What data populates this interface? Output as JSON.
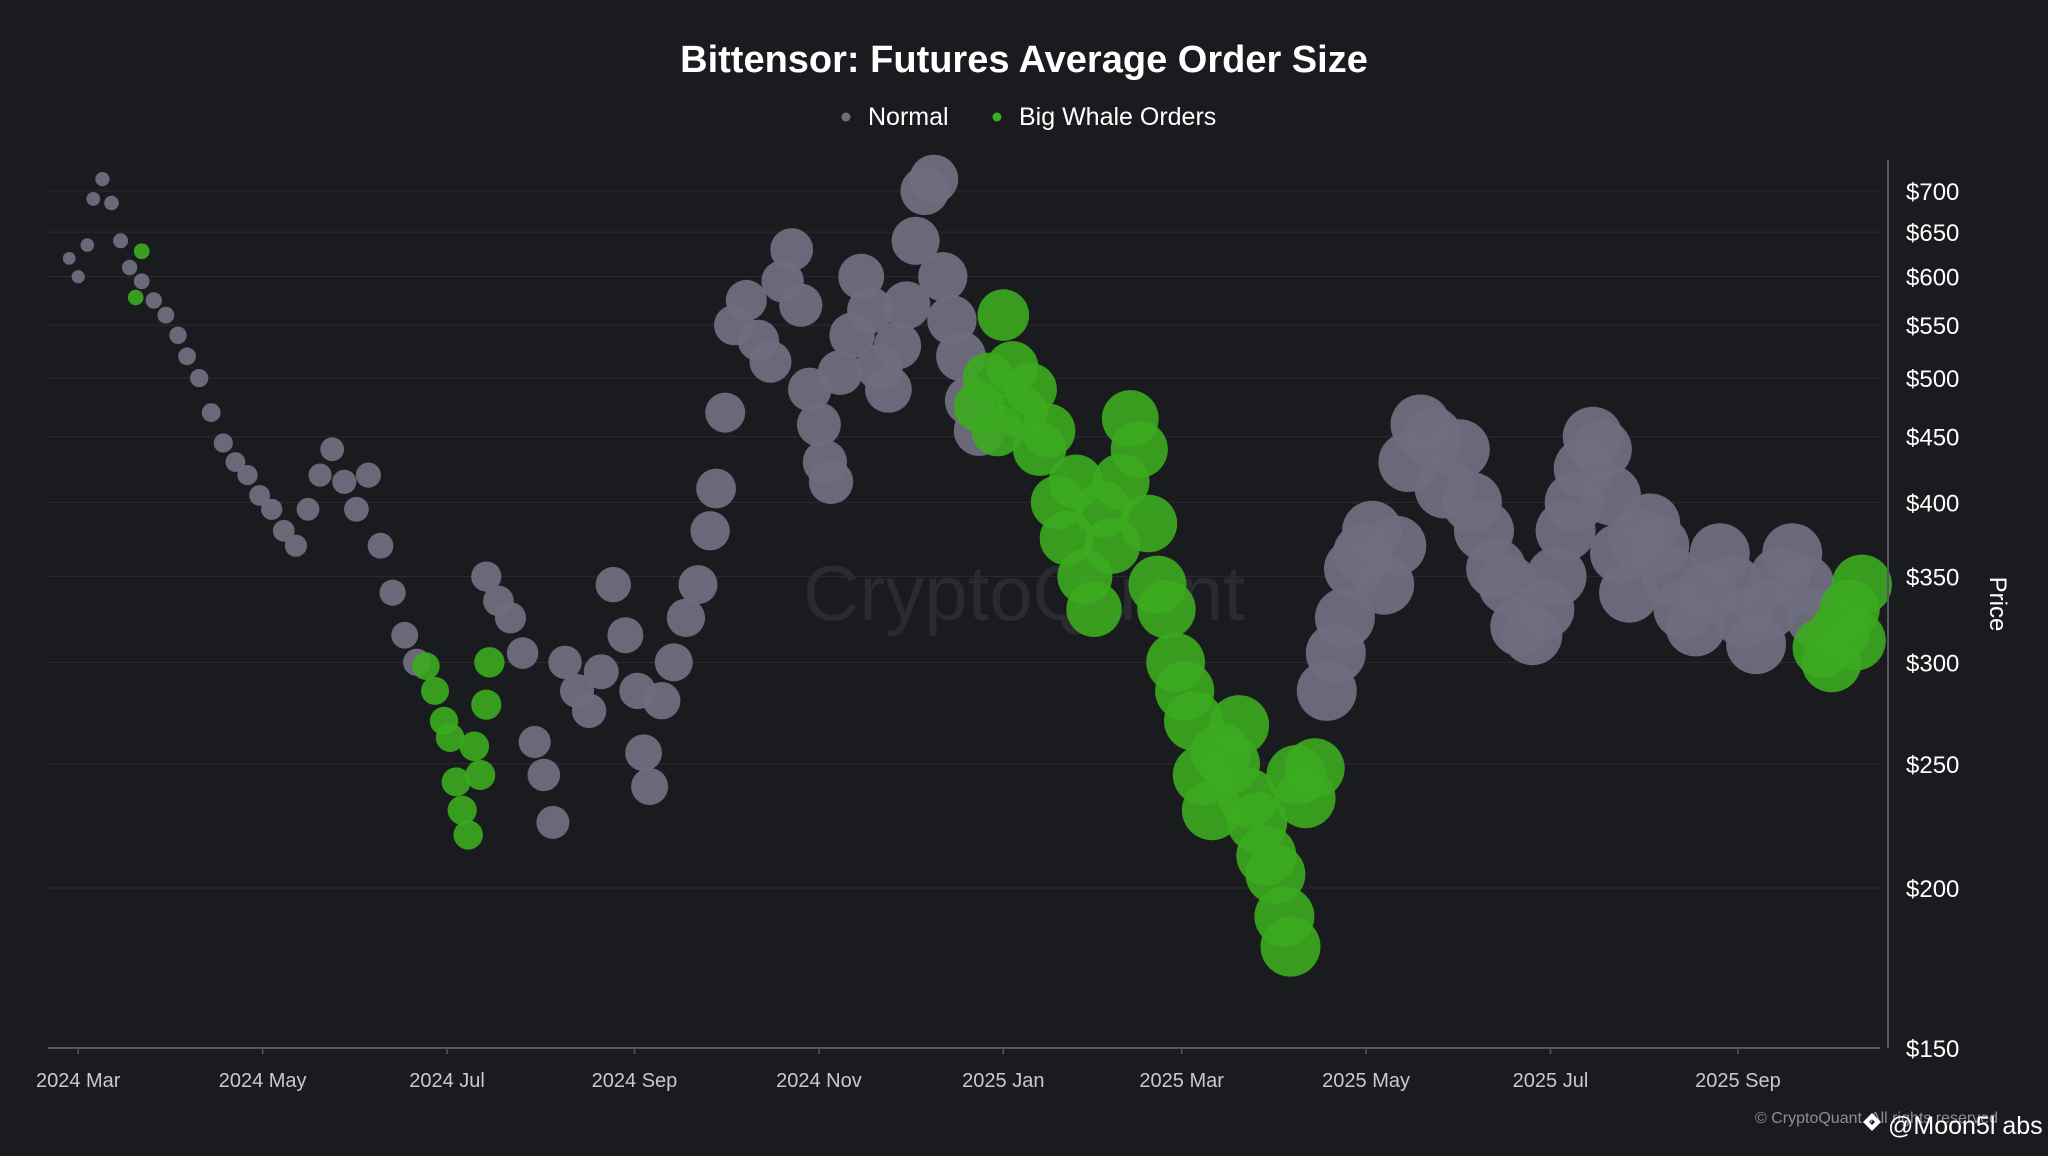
{
  "chart_data": {
    "type": "scatter",
    "title": "Bittensor: Futures Average Order Size",
    "legend": {
      "placement": "top-center",
      "items": [
        {
          "label": "Normal",
          "color": "#6f6e7f"
        },
        {
          "label": "Big Whale Orders",
          "color": "#3cab1f"
        }
      ]
    },
    "y_axis": {
      "label": "Price",
      "position": "right",
      "scale": "log",
      "range": [
        150,
        740
      ],
      "ticks": [
        {
          "value": 150,
          "label": "$150"
        },
        {
          "value": 200,
          "label": "$200"
        },
        {
          "value": 250,
          "label": "$250"
        },
        {
          "value": 300,
          "label": "$300"
        },
        {
          "value": 350,
          "label": "$350"
        },
        {
          "value": 400,
          "label": "$400"
        },
        {
          "value": 450,
          "label": "$450"
        },
        {
          "value": 500,
          "label": "$500"
        },
        {
          "value": 550,
          "label": "$550"
        },
        {
          "value": 600,
          "label": "$600"
        },
        {
          "value": 650,
          "label": "$650"
        },
        {
          "value": 700,
          "label": "$700"
        }
      ]
    },
    "x_axis": {
      "type": "date",
      "range": [
        "2024-02-20",
        "2025-10-18"
      ],
      "ticks": [
        {
          "value": "2024-03-01",
          "label": "2024 Mar"
        },
        {
          "value": "2024-05-01",
          "label": "2024 May"
        },
        {
          "value": "2024-07-01",
          "label": "2024 Jul"
        },
        {
          "value": "2024-09-01",
          "label": "2024 Sep"
        },
        {
          "value": "2024-11-01",
          "label": "2024 Nov"
        },
        {
          "value": "2025-01-01",
          "label": "2025 Jan"
        },
        {
          "value": "2025-03-01",
          "label": "2025 Mar"
        },
        {
          "value": "2025-05-01",
          "label": "2025 May"
        },
        {
          "value": "2025-07-01",
          "label": "2025 Jul"
        },
        {
          "value": "2025-09-01",
          "label": "2025 Sep"
        }
      ]
    },
    "grid": "horizontal",
    "watermark": "CryptoQuant",
    "copyright": "© CryptoQuant. All rights reserved",
    "series": [
      {
        "name": "Normal",
        "color": "#6f6e7f",
        "points": [
          [
            "2024-02-27",
            620
          ],
          [
            "2024-03-01",
            600
          ],
          [
            "2024-03-04",
            635
          ],
          [
            "2024-03-06",
            690
          ],
          [
            "2024-03-09",
            715
          ],
          [
            "2024-03-12",
            685
          ],
          [
            "2024-03-15",
            640
          ],
          [
            "2024-03-18",
            610
          ],
          [
            "2024-03-22",
            595
          ],
          [
            "2024-03-26",
            575
          ],
          [
            "2024-03-30",
            560
          ],
          [
            "2024-04-03",
            540
          ],
          [
            "2024-04-06",
            520
          ],
          [
            "2024-04-10",
            500
          ],
          [
            "2024-04-14",
            470
          ],
          [
            "2024-04-18",
            445
          ],
          [
            "2024-04-22",
            430
          ],
          [
            "2024-04-26",
            420
          ],
          [
            "2024-04-30",
            405
          ],
          [
            "2024-05-04",
            395
          ],
          [
            "2024-05-08",
            380
          ],
          [
            "2024-05-12",
            370
          ],
          [
            "2024-05-16",
            395
          ],
          [
            "2024-05-20",
            420
          ],
          [
            "2024-05-24",
            440
          ],
          [
            "2024-05-28",
            415
          ],
          [
            "2024-06-01",
            395
          ],
          [
            "2024-06-05",
            420
          ],
          [
            "2024-06-09",
            370
          ],
          [
            "2024-06-13",
            340
          ],
          [
            "2024-06-17",
            315
          ],
          [
            "2024-06-21",
            300
          ],
          [
            "2024-07-14",
            350
          ],
          [
            "2024-07-18",
            335
          ],
          [
            "2024-07-22",
            325
          ],
          [
            "2024-07-26",
            305
          ],
          [
            "2024-07-30",
            260
          ],
          [
            "2024-08-02",
            245
          ],
          [
            "2024-08-05",
            225
          ],
          [
            "2024-08-09",
            300
          ],
          [
            "2024-08-13",
            285
          ],
          [
            "2024-08-17",
            275
          ],
          [
            "2024-08-21",
            295
          ],
          [
            "2024-08-25",
            345
          ],
          [
            "2024-08-29",
            315
          ],
          [
            "2024-09-02",
            285
          ],
          [
            "2024-09-04",
            255
          ],
          [
            "2024-09-06",
            240
          ],
          [
            "2024-09-10",
            280
          ],
          [
            "2024-09-14",
            300
          ],
          [
            "2024-09-18",
            325
          ],
          [
            "2024-09-22",
            345
          ],
          [
            "2024-09-26",
            380
          ],
          [
            "2024-09-28",
            410
          ],
          [
            "2024-10-01",
            470
          ],
          [
            "2024-10-04",
            550
          ],
          [
            "2024-10-08",
            575
          ],
          [
            "2024-10-12",
            535
          ],
          [
            "2024-10-16",
            515
          ],
          [
            "2024-10-20",
            595
          ],
          [
            "2024-10-23",
            630
          ],
          [
            "2024-10-26",
            570
          ],
          [
            "2024-10-29",
            490
          ],
          [
            "2024-11-01",
            460
          ],
          [
            "2024-11-03",
            430
          ],
          [
            "2024-11-05",
            415
          ],
          [
            "2024-11-08",
            505
          ],
          [
            "2024-11-12",
            540
          ],
          [
            "2024-11-15",
            600
          ],
          [
            "2024-11-18",
            565
          ],
          [
            "2024-11-21",
            510
          ],
          [
            "2024-11-24",
            490
          ],
          [
            "2024-11-27",
            530
          ],
          [
            "2024-11-30",
            570
          ],
          [
            "2024-12-03",
            640
          ],
          [
            "2024-12-06",
            700
          ],
          [
            "2024-12-09",
            715
          ],
          [
            "2024-12-12",
            600
          ],
          [
            "2024-12-15",
            555
          ],
          [
            "2024-12-18",
            520
          ],
          [
            "2024-12-21",
            480
          ],
          [
            "2024-12-24",
            455
          ],
          [
            "2025-04-18",
            285
          ],
          [
            "2025-04-21",
            305
          ],
          [
            "2025-04-24",
            325
          ],
          [
            "2025-04-27",
            355
          ],
          [
            "2025-04-30",
            365
          ],
          [
            "2025-05-03",
            380
          ],
          [
            "2025-05-07",
            345
          ],
          [
            "2025-05-11",
            370
          ],
          [
            "2025-05-15",
            430
          ],
          [
            "2025-05-19",
            460
          ],
          [
            "2025-05-23",
            450
          ],
          [
            "2025-05-27",
            410
          ],
          [
            "2025-06-01",
            440
          ],
          [
            "2025-06-05",
            400
          ],
          [
            "2025-06-09",
            380
          ],
          [
            "2025-06-13",
            355
          ],
          [
            "2025-06-17",
            345
          ],
          [
            "2025-06-21",
            320
          ],
          [
            "2025-06-25",
            315
          ],
          [
            "2025-06-29",
            330
          ],
          [
            "2025-07-03",
            350
          ],
          [
            "2025-07-06",
            380
          ],
          [
            "2025-07-09",
            400
          ],
          [
            "2025-07-12",
            425
          ],
          [
            "2025-07-15",
            450
          ],
          [
            "2025-07-18",
            440
          ],
          [
            "2025-07-21",
            405
          ],
          [
            "2025-07-24",
            365
          ],
          [
            "2025-07-27",
            340
          ],
          [
            "2025-07-30",
            375
          ],
          [
            "2025-08-03",
            385
          ],
          [
            "2025-08-06",
            370
          ],
          [
            "2025-08-10",
            350
          ],
          [
            "2025-08-14",
            330
          ],
          [
            "2025-08-18",
            320
          ],
          [
            "2025-08-22",
            340
          ],
          [
            "2025-08-26",
            365
          ],
          [
            "2025-08-30",
            345
          ],
          [
            "2025-09-03",
            325
          ],
          [
            "2025-09-07",
            310
          ],
          [
            "2025-09-11",
            330
          ],
          [
            "2025-09-15",
            350
          ],
          [
            "2025-09-19",
            365
          ],
          [
            "2025-09-23",
            345
          ],
          [
            "2025-09-27",
            325
          ]
        ]
      },
      {
        "name": "Big Whale Orders",
        "color": "#3cab1f",
        "points": [
          [
            "2024-03-22",
            628
          ],
          [
            "2024-03-20",
            578
          ],
          [
            "2024-06-24",
            298
          ],
          [
            "2024-06-27",
            285
          ],
          [
            "2024-06-30",
            270
          ],
          [
            "2024-07-02",
            262
          ],
          [
            "2024-07-04",
            242
          ],
          [
            "2024-07-06",
            230
          ],
          [
            "2024-07-08",
            220
          ],
          [
            "2024-07-10",
            258
          ],
          [
            "2024-07-12",
            245
          ],
          [
            "2024-07-14",
            278
          ],
          [
            "2024-07-15",
            300
          ],
          [
            "2024-12-24",
            475
          ],
          [
            "2024-12-27",
            500
          ],
          [
            "2024-12-30",
            455
          ],
          [
            "2025-01-01",
            560
          ],
          [
            "2025-01-04",
            510
          ],
          [
            "2025-01-07",
            470
          ],
          [
            "2025-01-10",
            490
          ],
          [
            "2025-01-13",
            440
          ],
          [
            "2025-01-16",
            455
          ],
          [
            "2025-01-19",
            400
          ],
          [
            "2025-01-22",
            375
          ],
          [
            "2025-01-25",
            415
          ],
          [
            "2025-01-28",
            350
          ],
          [
            "2025-01-31",
            330
          ],
          [
            "2025-02-03",
            395
          ],
          [
            "2025-02-06",
            370
          ],
          [
            "2025-02-09",
            415
          ],
          [
            "2025-02-12",
            465
          ],
          [
            "2025-02-15",
            440
          ],
          [
            "2025-02-18",
            385
          ],
          [
            "2025-02-21",
            345
          ],
          [
            "2025-02-24",
            330
          ],
          [
            "2025-02-27",
            300
          ],
          [
            "2025-03-02",
            285
          ],
          [
            "2025-03-05",
            270
          ],
          [
            "2025-03-08",
            245
          ],
          [
            "2025-03-11",
            230
          ],
          [
            "2025-03-14",
            255
          ],
          [
            "2025-03-17",
            250
          ],
          [
            "2025-03-20",
            268
          ],
          [
            "2025-03-23",
            235
          ],
          [
            "2025-03-26",
            225
          ],
          [
            "2025-03-29",
            212
          ],
          [
            "2025-04-01",
            205
          ],
          [
            "2025-04-04",
            190
          ],
          [
            "2025-04-06",
            180
          ],
          [
            "2025-04-08",
            245
          ],
          [
            "2025-04-11",
            235
          ],
          [
            "2025-04-14",
            248
          ],
          [
            "2025-09-29",
            308
          ],
          [
            "2025-10-02",
            300
          ],
          [
            "2025-10-05",
            318
          ],
          [
            "2025-10-08",
            330
          ],
          [
            "2025-10-10",
            312
          ],
          [
            "2025-10-12",
            345
          ]
        ]
      }
    ]
  },
  "footer": {
    "copyright": "© CryptoQuant. All rights reserved",
    "author": "@Moon5l abs"
  }
}
